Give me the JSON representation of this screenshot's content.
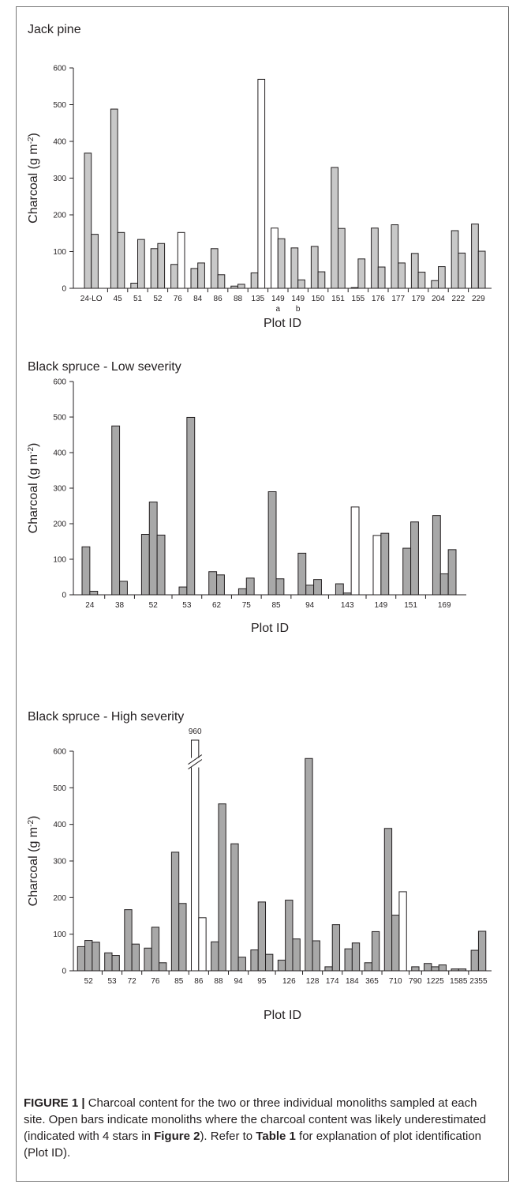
{
  "chart_data": [
    {
      "type": "bar",
      "title": "Jack pine",
      "xlabel": "Plot ID",
      "ylabel": "Charcoal (g m",
      "ylabel_sup": "-2",
      "ylabel_end": ")",
      "ylim": [
        0,
        600
      ],
      "yticks": [
        "0",
        "100",
        "200",
        "300",
        "400",
        "500",
        "600"
      ],
      "legend": "Open bars: monoliths where charcoal content was likely underestimated",
      "groups": [
        {
          "label": "24-LO",
          "sublabel": "",
          "values": [
            368,
            147
          ],
          "open": [
            false,
            false
          ]
        },
        {
          "label": "45",
          "sublabel": "",
          "values": [
            488,
            152
          ],
          "open": [
            false,
            false
          ]
        },
        {
          "label": "51",
          "sublabel": "",
          "values": [
            14,
            133
          ],
          "open": [
            false,
            false
          ]
        },
        {
          "label": "52",
          "sublabel": "",
          "values": [
            108,
            122
          ],
          "open": [
            false,
            false
          ]
        },
        {
          "label": "76",
          "sublabel": "",
          "values": [
            65,
            152
          ],
          "open": [
            false,
            true
          ]
        },
        {
          "label": "84",
          "sublabel": "",
          "values": [
            54,
            69
          ],
          "open": [
            false,
            false
          ]
        },
        {
          "label": "86",
          "sublabel": "",
          "values": [
            108,
            37
          ],
          "open": [
            false,
            false
          ]
        },
        {
          "label": "88",
          "sublabel": "",
          "values": [
            6,
            11
          ],
          "open": [
            false,
            false
          ]
        },
        {
          "label": "135",
          "sublabel": "",
          "values": [
            42,
            569
          ],
          "open": [
            false,
            true
          ]
        },
        {
          "label": "149",
          "sublabel": "a",
          "values": [
            164,
            135
          ],
          "open": [
            true,
            false
          ]
        },
        {
          "label": "149",
          "sublabel": "b",
          "values": [
            110,
            23
          ],
          "open": [
            false,
            false
          ]
        },
        {
          "label": "150",
          "sublabel": "",
          "values": [
            114,
            45
          ],
          "open": [
            false,
            false
          ]
        },
        {
          "label": "151",
          "sublabel": "",
          "values": [
            329,
            163
          ],
          "open": [
            false,
            false
          ]
        },
        {
          "label": "155",
          "sublabel": "",
          "values": [
            2,
            80
          ],
          "open": [
            false,
            false
          ]
        },
        {
          "label": "176",
          "sublabel": "",
          "values": [
            164,
            58
          ],
          "open": [
            false,
            false
          ]
        },
        {
          "label": "177",
          "sublabel": "",
          "values": [
            173,
            69
          ],
          "open": [
            false,
            false
          ]
        },
        {
          "label": "179",
          "sublabel": "",
          "values": [
            95,
            44
          ],
          "open": [
            false,
            false
          ]
        },
        {
          "label": "204",
          "sublabel": "",
          "values": [
            21,
            59
          ],
          "open": [
            false,
            false
          ]
        },
        {
          "label": "222",
          "sublabel": "",
          "values": [
            157,
            96
          ],
          "open": [
            false,
            false
          ]
        },
        {
          "label": "229",
          "sublabel": "",
          "values": [
            175,
            101
          ],
          "open": [
            false,
            false
          ]
        }
      ],
      "colors": {
        "filled": "#c8c8c8",
        "open": "#ffffff",
        "stroke": "#231f20"
      }
    },
    {
      "type": "bar",
      "title": "Black spruce - Low severity",
      "xlabel": "Plot ID",
      "ylabel": "Charcoal (g m",
      "ylabel_sup": "-2",
      "ylabel_end": ")",
      "ylim": [
        0,
        600
      ],
      "yticks": [
        "0",
        "100",
        "200",
        "300",
        "400",
        "500",
        "600"
      ],
      "groups": [
        {
          "label": "24",
          "sublabel": "",
          "values": [
            135,
            10
          ],
          "open": [
            false,
            false
          ]
        },
        {
          "label": "38",
          "sublabel": "",
          "values": [
            475,
            38
          ],
          "open": [
            false,
            false
          ]
        },
        {
          "label": "52",
          "sublabel": "",
          "values": [
            170,
            261,
            168
          ],
          "open": [
            false,
            false,
            false
          ]
        },
        {
          "label": "53",
          "sublabel": "",
          "values": [
            22,
            499
          ],
          "open": [
            false,
            false
          ]
        },
        {
          "label": "62",
          "sublabel": "",
          "values": [
            65,
            56
          ],
          "open": [
            false,
            false
          ]
        },
        {
          "label": "75",
          "sublabel": "",
          "values": [
            17,
            47
          ],
          "open": [
            false,
            false
          ]
        },
        {
          "label": "85",
          "sublabel": "",
          "values": [
            290,
            45
          ],
          "open": [
            false,
            false
          ]
        },
        {
          "label": "94",
          "sublabel": "",
          "values": [
            117,
            27,
            43
          ],
          "open": [
            false,
            false,
            false
          ]
        },
        {
          "label": "143",
          "sublabel": "",
          "values": [
            31,
            5,
            247
          ],
          "open": [
            false,
            false,
            true
          ]
        },
        {
          "label": "149",
          "sublabel": "",
          "values": [
            167,
            173
          ],
          "open": [
            true,
            false
          ]
        },
        {
          "label": "151",
          "sublabel": "",
          "values": [
            131,
            205
          ],
          "open": [
            false,
            false
          ]
        },
        {
          "label": "169",
          "sublabel": "",
          "values": [
            223,
            59,
            127
          ],
          "open": [
            false,
            false,
            false
          ]
        }
      ],
      "colors": {
        "filled": "#a8a8a8",
        "open": "#ffffff",
        "stroke": "#231f20"
      }
    },
    {
      "type": "bar",
      "title": "Black spruce - High severity",
      "xlabel": "Plot ID",
      "ylabel": "Charcoal (g m",
      "ylabel_sup": "-2",
      "ylabel_end": ")",
      "ylim": [
        0,
        600
      ],
      "yticks": [
        "0",
        "100",
        "200",
        "300",
        "400",
        "500",
        "600"
      ],
      "annotation": "960",
      "groups": [
        {
          "label": "52",
          "sublabel": "",
          "values": [
            66,
            83,
            78
          ],
          "open": [
            false,
            false,
            false
          ]
        },
        {
          "label": "53",
          "sublabel": "",
          "values": [
            49,
            42
          ],
          "open": [
            false,
            false
          ]
        },
        {
          "label": "72",
          "sublabel": "",
          "values": [
            167,
            73
          ],
          "open": [
            false,
            false
          ]
        },
        {
          "label": "76",
          "sublabel": "",
          "values": [
            62,
            119,
            22
          ],
          "open": [
            false,
            false,
            false
          ]
        },
        {
          "label": "85",
          "sublabel": "",
          "values": [
            324,
            184
          ],
          "open": [
            false,
            false
          ]
        },
        {
          "label": "86",
          "sublabel": "",
          "values": [
            960,
            145
          ],
          "open": [
            true,
            true
          ],
          "broken": true
        },
        {
          "label": "88",
          "sublabel": "",
          "values": [
            79,
            456
          ],
          "open": [
            false,
            false
          ]
        },
        {
          "label": "94",
          "sublabel": "",
          "values": [
            347,
            37
          ],
          "open": [
            false,
            false
          ]
        },
        {
          "label": "95",
          "sublabel": "",
          "values": [
            57,
            188,
            45
          ],
          "open": [
            false,
            false,
            false
          ]
        },
        {
          "label": "126",
          "sublabel": "",
          "values": [
            29,
            193,
            87
          ],
          "open": [
            false,
            false,
            false
          ]
        },
        {
          "label": "128",
          "sublabel": "",
          "values": [
            580,
            82
          ],
          "open": [
            false,
            false
          ]
        },
        {
          "label": "174",
          "sublabel": "",
          "values": [
            11,
            126
          ],
          "open": [
            false,
            false
          ]
        },
        {
          "label": "184",
          "sublabel": "",
          "values": [
            60,
            76
          ],
          "open": [
            false,
            false
          ]
        },
        {
          "label": "365",
          "sublabel": "",
          "values": [
            22,
            107
          ],
          "open": [
            false,
            false
          ]
        },
        {
          "label": "710",
          "sublabel": "",
          "values": [
            389,
            152,
            216
          ],
          "open": [
            false,
            false,
            true
          ]
        },
        {
          "label": "790",
          "sublabel": "",
          "values": [
            11
          ],
          "open": [
            false
          ]
        },
        {
          "label": "1225",
          "sublabel": "",
          "values": [
            20,
            11,
            16
          ],
          "open": [
            false,
            false,
            false
          ]
        },
        {
          "label": "1585",
          "sublabel": "",
          "values": [
            5,
            5
          ],
          "open": [
            false,
            false
          ]
        },
        {
          "label": "2355",
          "sublabel": "",
          "values": [
            56,
            108
          ],
          "open": [
            false,
            false
          ]
        }
      ],
      "colors": {
        "filled": "#a8a8a8",
        "open": "#ffffff",
        "stroke": "#231f20"
      }
    }
  ],
  "caption": {
    "label": "FIGURE 1 |",
    "text_1": " Charcoal content for the two or three individual monoliths sampled at each site. Open bars indicate monoliths where the charcoal content was likely underestimated (indicated with 4 stars in ",
    "ref_1": "Figure 2",
    "text_2": "). Refer to ",
    "ref_2": "Table 1",
    "text_3": " for explanation of plot identification (Plot ID)."
  }
}
